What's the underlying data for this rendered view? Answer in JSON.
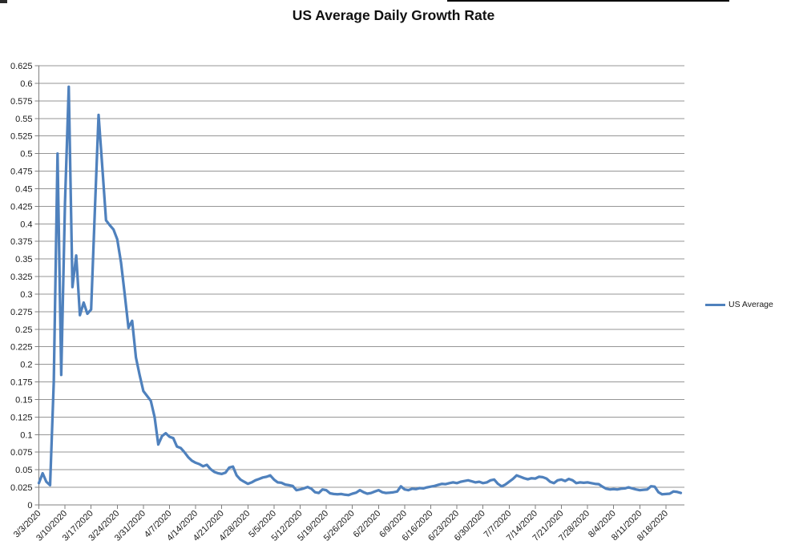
{
  "title": "US Average Daily Growth Rate",
  "colors": {
    "series": "#4F81BD",
    "gridline": "#969696",
    "axis": "#808080",
    "text": "#1a1a1a"
  },
  "chart_data": {
    "type": "line",
    "title": "US Average Daily Growth Rate",
    "xlabel": "",
    "ylabel": "",
    "ylim": [
      0,
      0.625
    ],
    "y_tick_step": 0.025,
    "grid": true,
    "legend_position": "right",
    "y_tick_labels": [
      "0",
      "0.025",
      "0.05",
      "0.075",
      "0.1",
      "0.125",
      "0.15",
      "0.175",
      "0.2",
      "0.225",
      "0.25",
      "0.275",
      "0.3",
      "0.325",
      "0.35",
      "0.375",
      "0.4",
      "0.425",
      "0.45",
      "0.475",
      "0.5",
      "0.525",
      "0.55",
      "0.575",
      "0.6",
      "0.625"
    ],
    "x_tick_labels": [
      "3/3/2020",
      "3/10/2020",
      "3/17/2020",
      "3/24/2020",
      "3/31/2020",
      "4/7/2020",
      "4/14/2020",
      "4/21/2020",
      "4/28/2020",
      "5/5/2020",
      "5/12/2020",
      "5/19/2020",
      "5/26/2020",
      "6/2/2020",
      "6/9/2020",
      "6/16/2020",
      "6/23/2020",
      "6/30/2020",
      "7/7/2020",
      "7/14/2020",
      "7/21/2020",
      "7/28/2020",
      "8/4/2020",
      "8/11/2020",
      "8/18/2020"
    ],
    "series": [
      {
        "name": "US Average",
        "color": "#4F81BD",
        "x": [
          "3/3/2020",
          "3/4/2020",
          "3/5/2020",
          "3/6/2020",
          "3/7/2020",
          "3/8/2020",
          "3/9/2020",
          "3/10/2020",
          "3/11/2020",
          "3/12/2020",
          "3/13/2020",
          "3/14/2020",
          "3/15/2020",
          "3/16/2020",
          "3/17/2020",
          "3/18/2020",
          "3/19/2020",
          "3/20/2020",
          "3/21/2020",
          "3/22/2020",
          "3/23/2020",
          "3/24/2020",
          "3/25/2020",
          "3/26/2020",
          "3/27/2020",
          "3/28/2020",
          "3/29/2020",
          "3/30/2020",
          "3/31/2020",
          "4/1/2020",
          "4/2/2020",
          "4/3/2020",
          "4/4/2020",
          "4/5/2020",
          "4/6/2020",
          "4/7/2020",
          "4/8/2020",
          "4/9/2020",
          "4/10/2020",
          "4/11/2020",
          "4/12/2020",
          "4/13/2020",
          "4/14/2020",
          "4/15/2020",
          "4/16/2020",
          "4/17/2020",
          "4/18/2020",
          "4/19/2020",
          "4/20/2020",
          "4/21/2020",
          "4/22/2020",
          "4/23/2020",
          "4/24/2020",
          "4/25/2020",
          "4/26/2020",
          "4/27/2020",
          "4/28/2020",
          "4/29/2020",
          "4/30/2020",
          "5/1/2020",
          "5/2/2020",
          "5/3/2020",
          "5/4/2020",
          "5/5/2020",
          "5/6/2020",
          "5/7/2020",
          "5/8/2020",
          "5/9/2020",
          "5/10/2020",
          "5/11/2020",
          "5/12/2020",
          "5/13/2020",
          "5/14/2020",
          "5/15/2020",
          "5/16/2020",
          "5/17/2020",
          "5/18/2020",
          "5/19/2020",
          "5/20/2020",
          "5/21/2020",
          "5/22/2020",
          "5/23/2020",
          "5/24/2020",
          "5/25/2020",
          "5/26/2020",
          "5/27/2020",
          "5/28/2020",
          "5/29/2020",
          "5/30/2020",
          "5/31/2020",
          "6/1/2020",
          "6/2/2020",
          "6/3/2020",
          "6/4/2020",
          "6/5/2020",
          "6/6/2020",
          "6/7/2020",
          "6/8/2020",
          "6/9/2020",
          "6/10/2020",
          "6/11/2020",
          "6/12/2020",
          "6/13/2020",
          "6/14/2020",
          "6/15/2020",
          "6/16/2020",
          "6/17/2020",
          "6/18/2020",
          "6/19/2020",
          "6/20/2020",
          "6/21/2020",
          "6/22/2020",
          "6/23/2020",
          "6/24/2020",
          "6/25/2020",
          "6/26/2020",
          "6/27/2020",
          "6/28/2020",
          "6/29/2020",
          "6/30/2020",
          "7/1/2020",
          "7/2/2020",
          "7/3/2020",
          "7/4/2020",
          "7/5/2020",
          "7/6/2020",
          "7/7/2020",
          "7/8/2020",
          "7/9/2020",
          "7/10/2020",
          "7/11/2020",
          "7/12/2020",
          "7/13/2020",
          "7/14/2020",
          "7/15/2020",
          "7/16/2020",
          "7/17/2020",
          "7/18/2020",
          "7/19/2020",
          "7/20/2020",
          "7/21/2020",
          "7/22/2020",
          "7/23/2020",
          "7/24/2020",
          "7/25/2020",
          "7/26/2020",
          "7/27/2020",
          "7/28/2020",
          "7/29/2020",
          "7/30/2020",
          "7/31/2020",
          "8/1/2020",
          "8/2/2020",
          "8/3/2020",
          "8/4/2020",
          "8/5/2020",
          "8/6/2020",
          "8/7/2020",
          "8/8/2020",
          "8/9/2020",
          "8/10/2020",
          "8/11/2020",
          "8/12/2020",
          "8/13/2020",
          "8/14/2020",
          "8/15/2020",
          "8/16/2020",
          "8/17/2020",
          "8/18/2020",
          "8/19/2020",
          "8/20/2020",
          "8/21/2020",
          "8/22/2020"
        ],
        "values": [
          0.031,
          0.045,
          0.033,
          0.028,
          0.175,
          0.5,
          0.185,
          0.43,
          0.595,
          0.31,
          0.355,
          0.27,
          0.288,
          0.272,
          0.278,
          0.42,
          0.555,
          0.48,
          0.405,
          0.398,
          0.392,
          0.378,
          0.345,
          0.3,
          0.252,
          0.262,
          0.21,
          0.185,
          0.162,
          0.155,
          0.148,
          0.125,
          0.086,
          0.098,
          0.102,
          0.097,
          0.095,
          0.083,
          0.081,
          0.075,
          0.068,
          0.063,
          0.06,
          0.058,
          0.055,
          0.057,
          0.051,
          0.047,
          0.045,
          0.044,
          0.046,
          0.053,
          0.0545,
          0.042,
          0.036,
          0.033,
          0.03,
          0.032,
          0.035,
          0.037,
          0.039,
          0.04,
          0.042,
          0.036,
          0.032,
          0.0315,
          0.029,
          0.028,
          0.027,
          0.021,
          0.022,
          0.0235,
          0.0255,
          0.023,
          0.018,
          0.017,
          0.022,
          0.021,
          0.0165,
          0.0155,
          0.015,
          0.0155,
          0.0145,
          0.014,
          0.016,
          0.0175,
          0.021,
          0.018,
          0.016,
          0.017,
          0.019,
          0.021,
          0.018,
          0.017,
          0.0175,
          0.018,
          0.019,
          0.0265,
          0.022,
          0.021,
          0.023,
          0.0225,
          0.024,
          0.0235,
          0.025,
          0.026,
          0.027,
          0.0285,
          0.03,
          0.0295,
          0.031,
          0.032,
          0.031,
          0.033,
          0.034,
          0.035,
          0.0335,
          0.032,
          0.033,
          0.031,
          0.032,
          0.035,
          0.036,
          0.03,
          0.0265,
          0.029,
          0.033,
          0.037,
          0.042,
          0.04,
          0.038,
          0.0365,
          0.038,
          0.0375,
          0.04,
          0.0395,
          0.0375,
          0.033,
          0.031,
          0.035,
          0.036,
          0.034,
          0.037,
          0.035,
          0.031,
          0.032,
          0.0315,
          0.032,
          0.031,
          0.03,
          0.0295,
          0.026,
          0.023,
          0.022,
          0.0225,
          0.022,
          0.023,
          0.0235,
          0.025,
          0.0235,
          0.022,
          0.021,
          0.0215,
          0.022,
          0.0265,
          0.026,
          0.018,
          0.015,
          0.0155,
          0.016,
          0.019,
          0.0185,
          0.017
        ]
      }
    ]
  }
}
